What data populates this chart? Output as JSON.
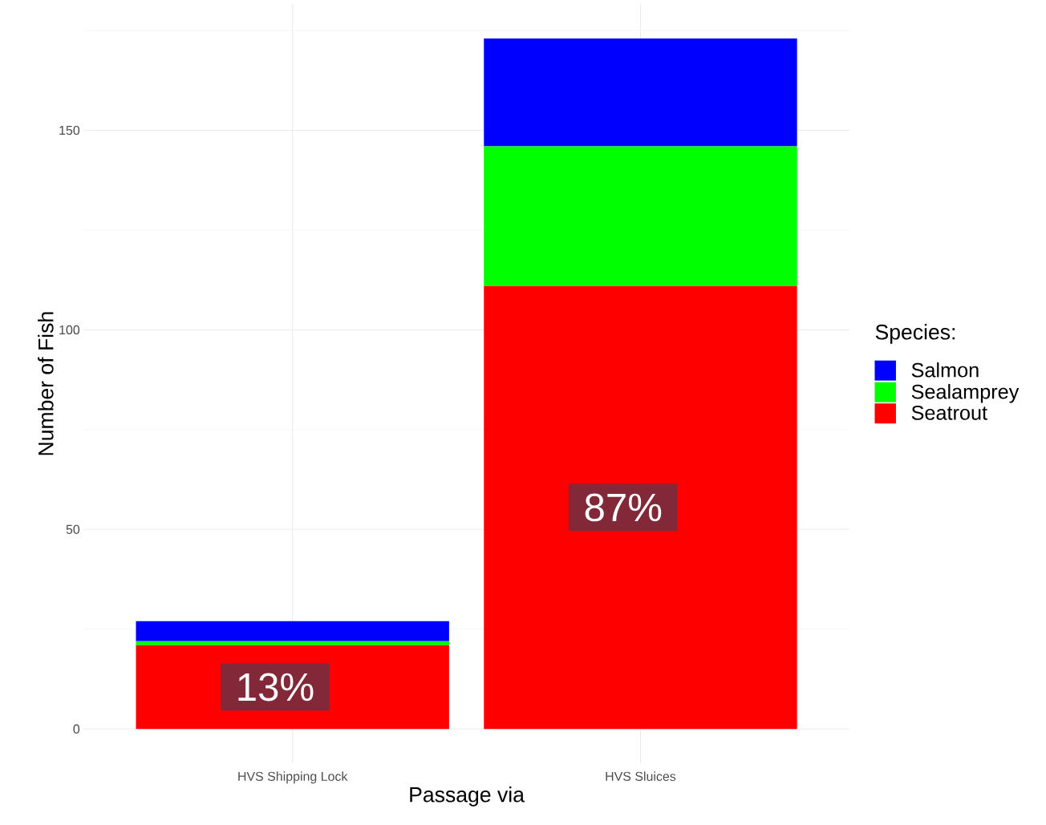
{
  "chart_data": {
    "type": "bar",
    "stacked": true,
    "xlabel": "Passage via",
    "ylabel": "Number of Fish",
    "legend_title": "Species:",
    "categories": [
      "HVS Shipping Lock",
      "HVS Sluices"
    ],
    "series": [
      {
        "name": "Seatrout",
        "color": "#ff0000",
        "values": [
          21,
          111
        ]
      },
      {
        "name": "Sealamprey",
        "color": "#00ff00",
        "values": [
          1,
          35
        ]
      },
      {
        "name": "Salmon",
        "color": "#0000ff",
        "values": [
          5,
          27
        ]
      }
    ],
    "ylim": [
      -8.65,
      181.65
    ],
    "yticks": [
      0,
      50,
      100,
      150
    ],
    "grid": true,
    "legend": "right",
    "annotations": [
      "13%",
      "87%"
    ]
  }
}
